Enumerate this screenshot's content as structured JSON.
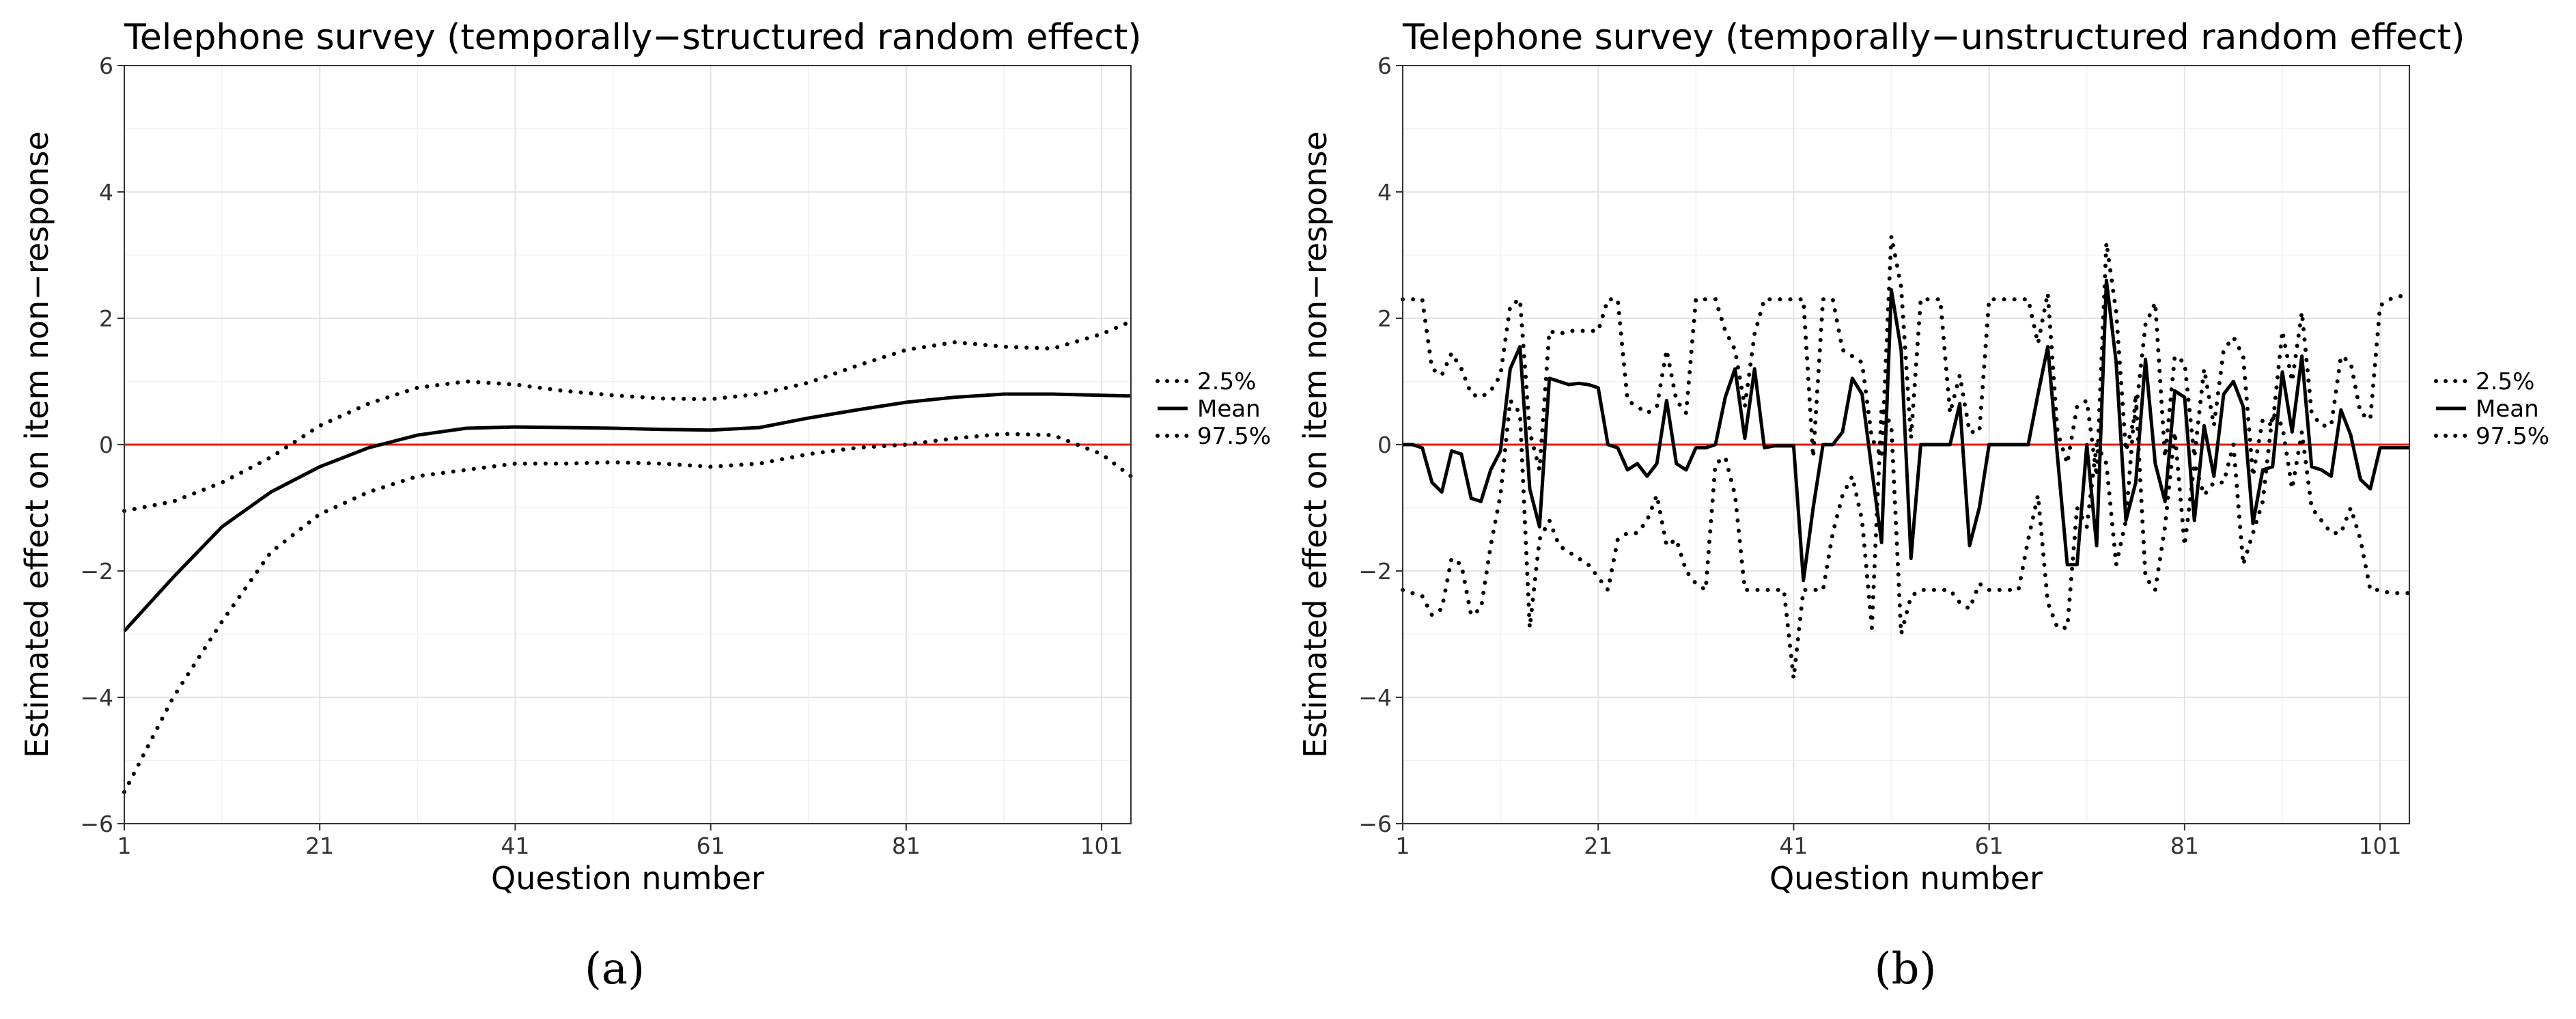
{
  "chart_data": [
    {
      "type": "line",
      "title": "Telephone survey (temporally−structured random effect)",
      "xlabel": "Question number",
      "ylabel": "Estimated effect on item non−response",
      "xlim": [
        1,
        104
      ],
      "ylim": [
        -6,
        6
      ],
      "xticks": [
        1,
        21,
        41,
        61,
        81,
        101
      ],
      "yticks": [
        -6,
        -4,
        -2,
        0,
        2,
        4,
        6
      ],
      "ytick_labels": [
        "−6",
        "−4",
        "−2",
        "0",
        "2",
        "4",
        "6"
      ],
      "reference_line": {
        "y": 0,
        "color": "#e81a10"
      },
      "legend": [
        "2.5%",
        "Mean",
        "97.5%"
      ],
      "legend_position": "right",
      "panel_label": "(a)",
      "x": [
        1,
        6,
        11,
        16,
        21,
        26,
        31,
        36,
        41,
        46,
        51,
        56,
        61,
        66,
        71,
        76,
        81,
        86,
        91,
        96,
        101,
        104
      ],
      "series": [
        {
          "name": "2.5%",
          "style": "dotted",
          "values": [
            -5.5,
            -4.0,
            -2.8,
            -1.7,
            -1.1,
            -0.75,
            -0.5,
            -0.4,
            -0.3,
            -0.3,
            -0.28,
            -0.3,
            -0.35,
            -0.3,
            -0.15,
            -0.05,
            0.0,
            0.1,
            0.17,
            0.15,
            -0.15,
            -0.5
          ]
        },
        {
          "name": "Mean",
          "style": "solid",
          "values": [
            -2.95,
            -2.1,
            -1.3,
            -0.75,
            -0.35,
            -0.05,
            0.15,
            0.26,
            0.28,
            0.27,
            0.26,
            0.24,
            0.23,
            0.27,
            0.42,
            0.55,
            0.67,
            0.75,
            0.8,
            0.8,
            0.78,
            0.77
          ]
        },
        {
          "name": "97.5%",
          "style": "dotted",
          "values": [
            -1.05,
            -0.9,
            -0.6,
            -0.2,
            0.3,
            0.65,
            0.9,
            1.0,
            0.95,
            0.85,
            0.78,
            0.73,
            0.72,
            0.8,
            0.98,
            1.25,
            1.5,
            1.62,
            1.55,
            1.52,
            1.75,
            1.95
          ]
        }
      ]
    },
    {
      "type": "line",
      "title": "Telephone survey (temporally−unstructured random effect)",
      "xlabel": "Question number",
      "ylabel": "Estimated effect on item non−response",
      "xlim": [
        1,
        104
      ],
      "ylim": [
        -6,
        6
      ],
      "xticks": [
        1,
        21,
        41,
        61,
        81,
        101
      ],
      "yticks": [
        -6,
        -4,
        -2,
        0,
        2,
        4,
        6
      ],
      "ytick_labels": [
        "−6",
        "−4",
        "−2",
        "0",
        "2",
        "4",
        "6"
      ],
      "reference_line": {
        "y": 0,
        "color": "#e81a10"
      },
      "legend": [
        "2.5%",
        "Mean",
        "97.5%"
      ],
      "legend_position": "right",
      "panel_label": "(b)",
      "x": [
        1,
        2,
        3,
        4,
        5,
        6,
        7,
        8,
        9,
        10,
        11,
        12,
        13,
        14,
        15,
        16,
        17,
        18,
        19,
        20,
        21,
        22,
        23,
        24,
        25,
        26,
        27,
        28,
        29,
        30,
        31,
        32,
        33,
        34,
        35,
        36,
        37,
        38,
        39,
        40,
        41,
        42,
        43,
        44,
        45,
        46,
        47,
        48,
        49,
        50,
        51,
        52,
        53,
        54,
        55,
        56,
        57,
        58,
        59,
        60,
        61,
        62,
        63,
        64,
        65,
        66,
        67,
        68,
        69,
        70,
        71,
        72,
        73,
        74,
        75,
        76,
        77,
        78,
        79,
        80,
        81,
        82,
        83,
        84,
        85,
        86,
        87,
        88,
        89,
        90,
        91,
        92,
        93,
        94,
        95,
        96,
        97,
        98,
        99,
        100,
        101,
        102,
        103,
        104
      ],
      "series": [
        {
          "name": "2.5%",
          "style": "dotted",
          "values": [
            -2.3,
            -2.35,
            -2.4,
            -2.7,
            -2.6,
            -1.8,
            -1.9,
            -2.7,
            -2.6,
            -1.6,
            -0.8,
            0.7,
            0.5,
            -2.9,
            -1.5,
            -1.2,
            -1.6,
            -1.7,
            -1.8,
            -1.9,
            -2.1,
            -2.3,
            -1.5,
            -1.4,
            -1.4,
            -1.2,
            -0.8,
            -1.6,
            -1.5,
            -2.0,
            -2.2,
            -2.3,
            -0.3,
            -0.2,
            -0.8,
            -2.3,
            -2.3,
            -2.3,
            -2.3,
            -2.3,
            -3.7,
            -2.3,
            -2.3,
            -2.3,
            -1.4,
            -0.8,
            -0.5,
            -1.2,
            -2.9,
            0.6,
            0.3,
            -3.0,
            -2.4,
            -2.3,
            -2.3,
            -2.3,
            -2.3,
            -2.5,
            -2.6,
            -2.2,
            -2.3,
            -2.3,
            -2.3,
            -2.3,
            -1.5,
            -0.8,
            -2.5,
            -2.9,
            -2.9,
            -1.0,
            -1.3,
            0.0,
            -0.3,
            -1.9,
            -1.2,
            0.8,
            -2.1,
            -2.3,
            -1.3,
            0.2,
            -1.6,
            -0.3,
            -0.8,
            -0.6,
            -0.6,
            0.0,
            -1.9,
            -1.4,
            -0.9,
            0.5,
            0.3,
            -0.7,
            0.2,
            -1.0,
            -1.2,
            -1.4,
            -1.4,
            -1.0,
            -1.5,
            -2.3,
            -2.3,
            -2.35,
            -2.35,
            -2.35
          ]
        },
        {
          "name": "Mean",
          "style": "solid",
          "values": [
            0.0,
            0.0,
            -0.05,
            -0.6,
            -0.75,
            -0.1,
            -0.15,
            -0.85,
            -0.9,
            -0.4,
            -0.1,
            1.2,
            1.55,
            -0.7,
            -1.3,
            1.05,
            1.0,
            0.95,
            0.97,
            0.95,
            0.9,
            0.0,
            -0.05,
            -0.4,
            -0.3,
            -0.5,
            -0.3,
            0.7,
            -0.3,
            -0.4,
            -0.05,
            -0.05,
            0.0,
            0.75,
            1.2,
            0.1,
            1.2,
            -0.05,
            -0.02,
            -0.02,
            -0.02,
            -2.15,
            -1.0,
            0.0,
            0.0,
            0.2,
            1.05,
            0.8,
            -0.4,
            -1.55,
            2.45,
            1.5,
            -1.8,
            0.0,
            0.0,
            0.0,
            0.0,
            0.65,
            -1.6,
            -1.0,
            0.0,
            0.0,
            0.0,
            0.0,
            0.0,
            0.8,
            1.55,
            -0.2,
            -1.9,
            -1.9,
            0.0,
            -1.6,
            2.6,
            1.3,
            -1.2,
            -0.6,
            1.35,
            -0.3,
            -0.9,
            0.85,
            0.75,
            -1.2,
            0.3,
            -0.5,
            0.8,
            1.0,
            0.6,
            -1.25,
            -0.4,
            -0.35,
            1.15,
            0.2,
            1.4,
            -0.35,
            -0.4,
            -0.5,
            0.55,
            0.15,
            -0.55,
            -0.7,
            -0.05,
            -0.05,
            -0.05,
            -0.05
          ]
        },
        {
          "name": "97.5%",
          "style": "dotted",
          "values": [
            2.3,
            2.3,
            2.3,
            1.2,
            1.1,
            1.45,
            1.2,
            0.8,
            0.75,
            0.85,
            1.1,
            2.2,
            2.3,
            0.2,
            -0.4,
            1.8,
            1.75,
            1.8,
            1.8,
            1.8,
            1.8,
            2.3,
            2.3,
            0.7,
            0.6,
            0.5,
            0.6,
            1.5,
            0.7,
            0.5,
            2.3,
            2.3,
            2.3,
            1.8,
            1.5,
            0.6,
            1.75,
            2.3,
            2.3,
            2.3,
            2.3,
            2.3,
            -0.2,
            2.3,
            2.3,
            1.5,
            1.4,
            1.3,
            0.1,
            -0.2,
            3.3,
            2.5,
            0.1,
            2.3,
            2.3,
            2.3,
            0.5,
            1.1,
            0.2,
            0.2,
            2.3,
            2.3,
            2.3,
            2.3,
            2.3,
            1.6,
            2.4,
            0.2,
            -0.3,
            0.6,
            0.7,
            -0.5,
            3.2,
            2.1,
            -0.1,
            0.5,
            1.9,
            2.25,
            -0.2,
            1.4,
            1.3,
            -0.2,
            1.2,
            0.3,
            1.5,
            1.7,
            1.4,
            -0.5,
            0.4,
            0.3,
            1.8,
            1.0,
            2.1,
            0.5,
            0.3,
            0.3,
            1.4,
            1.3,
            0.5,
            0.4,
            2.2,
            2.3,
            2.35,
            2.35
          ]
        }
      ]
    }
  ]
}
